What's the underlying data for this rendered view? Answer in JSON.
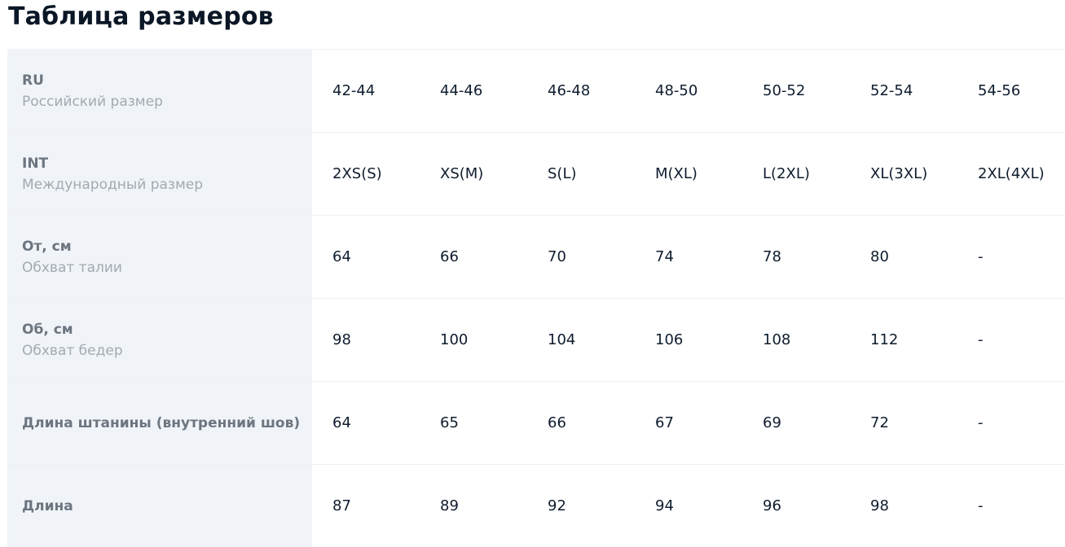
{
  "title": "Таблица размеров",
  "rows": [
    {
      "label": "RU",
      "sub": "Российский размер",
      "values": [
        "42-44",
        "44-46",
        "46-48",
        "48-50",
        "50-52",
        "52-54",
        "54-56"
      ]
    },
    {
      "label": "INT",
      "sub": "Международный размер",
      "values": [
        "2XS(S)",
        "XS(M)",
        "S(L)",
        "M(XL)",
        "L(2XL)",
        "XL(3XL)",
        "2XL(4XL)"
      ]
    },
    {
      "label": "От, см",
      "sub": "Обхват талии",
      "values": [
        "64",
        "66",
        "70",
        "74",
        "78",
        "80",
        "-"
      ]
    },
    {
      "label": "Об, см",
      "sub": "Обхват бедер",
      "values": [
        "98",
        "100",
        "104",
        "106",
        "108",
        "112",
        "-"
      ]
    },
    {
      "label": "Длина штанины (внутренний шов)",
      "sub": "",
      "values": [
        "64",
        "65",
        "66",
        "67",
        "69",
        "72",
        "-"
      ]
    },
    {
      "label": "Длина",
      "sub": "",
      "values": [
        "87",
        "89",
        "92",
        "94",
        "96",
        "98",
        "-"
      ]
    }
  ]
}
